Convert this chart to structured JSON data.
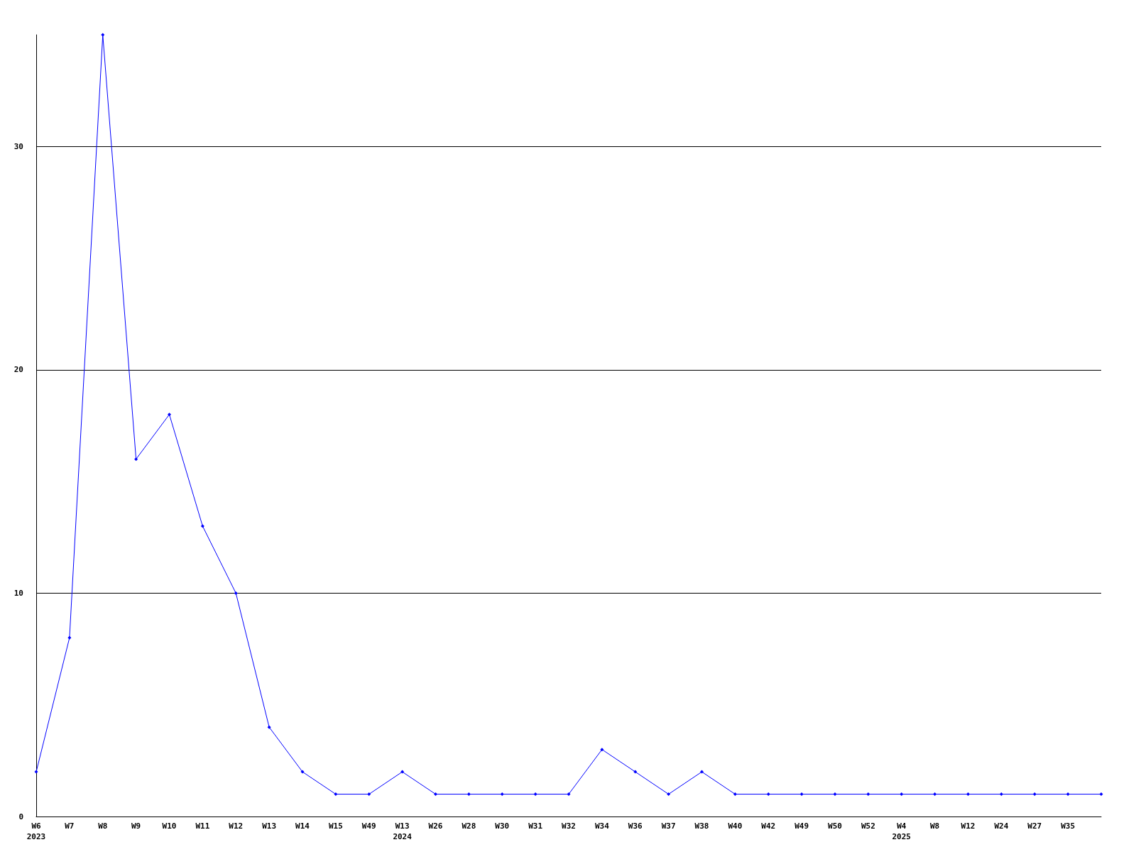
{
  "chart_data": {
    "type": "line",
    "categories": [
      "W6\n2023",
      "W7",
      "W8",
      "W9",
      "W10",
      "W11",
      "W12",
      "W13",
      "W14",
      "W15",
      "W49",
      "W13\n2024",
      "W26",
      "W28",
      "W30",
      "W31",
      "W32",
      "W34",
      "W36",
      "W37",
      "W38",
      "W40",
      "W42",
      "W49",
      "W50",
      "W52",
      "W4\n2025",
      "W8",
      "W12",
      "W24",
      "W27",
      "W35",
      null
    ],
    "series": [
      {
        "color": "#0000ff",
        "values": [
          2,
          8,
          35,
          16,
          18,
          13,
          10,
          4,
          2,
          1,
          1,
          2,
          1,
          1,
          1,
          1,
          1,
          3,
          2,
          1,
          2,
          1,
          1,
          1,
          1,
          1,
          1,
          1,
          1,
          1,
          1,
          1,
          1
        ]
      }
    ],
    "ylim": [
      0,
      35
    ],
    "yticks": [
      0,
      10,
      20,
      30
    ],
    "grid": "y",
    "marker": "diamond",
    "line_style": "solid"
  }
}
